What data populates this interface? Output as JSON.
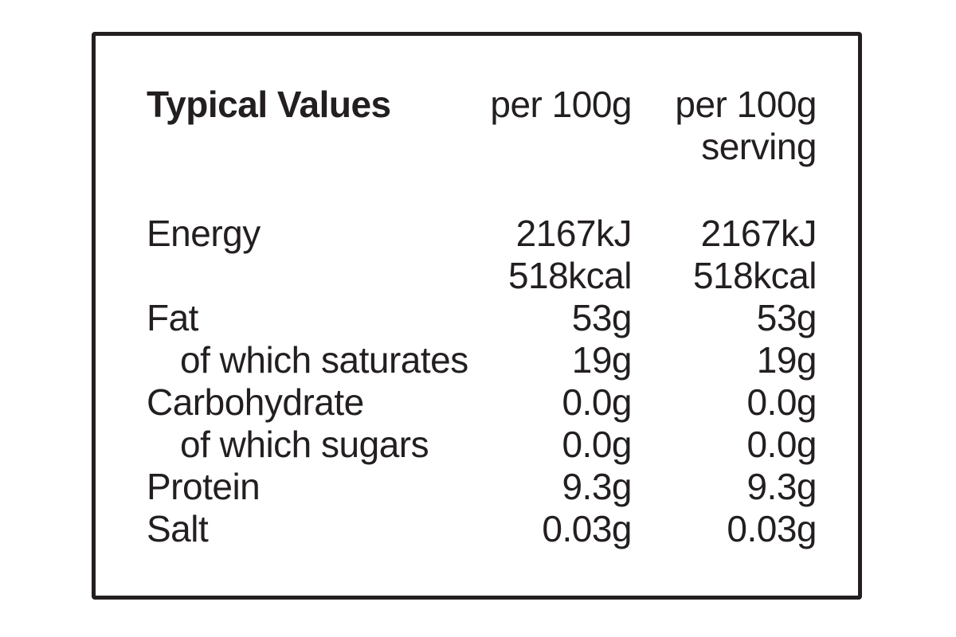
{
  "label": {
    "header": {
      "title": "Typical Values",
      "col_per100g": "per 100g",
      "col_serving_line1": "per 100g",
      "col_serving_line2": "serving"
    },
    "rows": [
      {
        "label": "Energy",
        "indent": false,
        "per100g": "2167kJ",
        "per_serving": "2167kJ"
      },
      {
        "label": "",
        "indent": false,
        "per100g": "518kcal",
        "per_serving": "518kcal"
      },
      {
        "label": "Fat",
        "indent": false,
        "per100g": "53g",
        "per_serving": "53g"
      },
      {
        "label": "of which saturates",
        "indent": true,
        "per100g": "19g",
        "per_serving": "19g"
      },
      {
        "label": "Carbohydrate",
        "indent": false,
        "per100g": "0.0g",
        "per_serving": "0.0g"
      },
      {
        "label": "of which sugars",
        "indent": true,
        "per100g": "0.0g",
        "per_serving": "0.0g"
      },
      {
        "label": "Protein",
        "indent": false,
        "per100g": "9.3g",
        "per_serving": "9.3g"
      },
      {
        "label": "Salt",
        "indent": false,
        "per100g": "0.03g",
        "per_serving": "0.03g"
      }
    ],
    "colors": {
      "text": "#231f20",
      "border": "#231f20",
      "background": "#ffffff"
    }
  }
}
